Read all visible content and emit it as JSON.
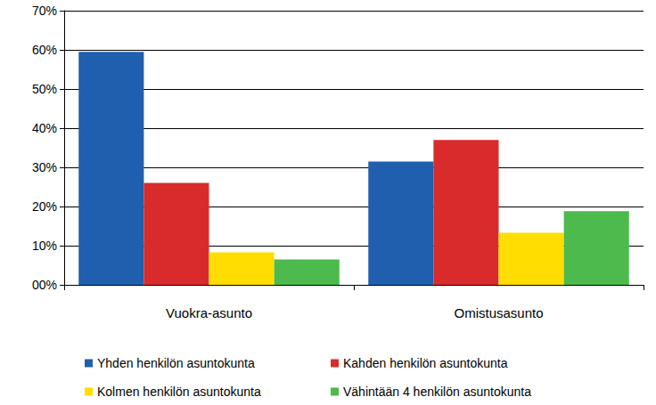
{
  "chart_data": {
    "type": "bar",
    "categories": [
      "Vuokra-asunto",
      "Omistusasunto"
    ],
    "series": [
      {
        "name": "Yhden henkilön asuntokunta",
        "color": "#1f5fae",
        "values": [
          59.5,
          31.5
        ]
      },
      {
        "name": "Kahden henkilön asuntokunta",
        "color": "#d92b2b",
        "values": [
          26,
          37
        ]
      },
      {
        "name": "Kolmen henkilön asuntokunta",
        "color": "#ffdd00",
        "values": [
          8.3,
          13.3
        ]
      },
      {
        "name": "Vähintään 4 henkilön asuntokunta",
        "color": "#4cba4c",
        "values": [
          6.5,
          18.8
        ]
      }
    ],
    "ylim": [
      0,
      70
    ],
    "yticks": [
      {
        "value": 0,
        "label": "00%"
      },
      {
        "value": 10,
        "label": "10%"
      },
      {
        "value": 20,
        "label": "20%"
      },
      {
        "value": 30,
        "label": "30%"
      },
      {
        "value": 40,
        "label": "40%"
      },
      {
        "value": 50,
        "label": "50%"
      },
      {
        "value": 60,
        "label": "60%"
      },
      {
        "value": 70,
        "label": "70%"
      }
    ],
    "grid": true,
    "legend": "bottom"
  }
}
